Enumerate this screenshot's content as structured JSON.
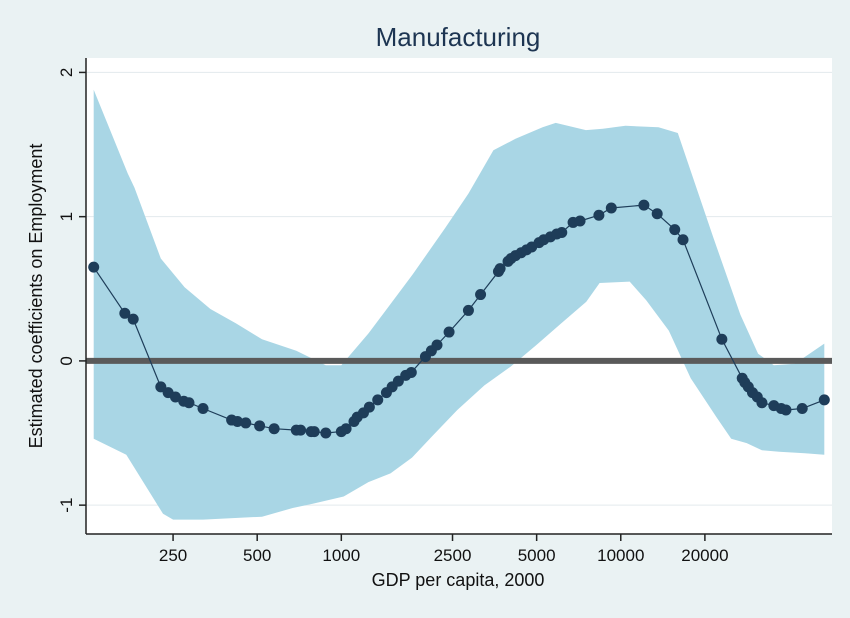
{
  "chart_data": {
    "type": "line",
    "title": "Manufacturing",
    "xlabel": "GDP per capita, 2000",
    "ylabel": "Estimated coefficients on Employment",
    "x_scale": "log",
    "xlim": [
      122,
      57000
    ],
    "ylim": [
      -1.2,
      2.1
    ],
    "x_ticks": [
      250,
      500,
      1000,
      2500,
      5000,
      10000,
      20000
    ],
    "x_tick_labels": [
      "250",
      "500",
      "1000",
      "2500",
      "5000",
      "10000",
      "20000"
    ],
    "y_ticks": [
      -1,
      0,
      1,
      2
    ],
    "y_tick_labels": [
      "-1",
      "0",
      "1",
      "2"
    ],
    "grid": true,
    "reference_line_y": 0,
    "colors": {
      "background": "#eaf2f3",
      "plot_background": "#ffffff",
      "band": "#a9d6e5",
      "line": "#1e3d59",
      "marker": "#1e3d59",
      "zero_line": "#5a5a5a",
      "grid": "#e3eaed"
    },
    "series": [
      {
        "values": [
          {
            "x": 130,
            "y": 0.65
          },
          {
            "x": 168,
            "y": 0.33
          },
          {
            "x": 180,
            "y": 0.29
          },
          {
            "x": 226,
            "y": -0.18
          },
          {
            "x": 240,
            "y": -0.22
          },
          {
            "x": 255,
            "y": -0.25
          },
          {
            "x": 273,
            "y": -0.28
          },
          {
            "x": 285,
            "y": -0.29
          },
          {
            "x": 320,
            "y": -0.33
          },
          {
            "x": 405,
            "y": -0.41
          },
          {
            "x": 425,
            "y": -0.42
          },
          {
            "x": 455,
            "y": -0.43
          },
          {
            "x": 510,
            "y": -0.45
          },
          {
            "x": 575,
            "y": -0.47
          },
          {
            "x": 690,
            "y": -0.48
          },
          {
            "x": 715,
            "y": -0.48
          },
          {
            "x": 780,
            "y": -0.49
          },
          {
            "x": 800,
            "y": -0.49
          },
          {
            "x": 880,
            "y": -0.5
          },
          {
            "x": 1000,
            "y": -0.49
          },
          {
            "x": 1040,
            "y": -0.47
          },
          {
            "x": 1110,
            "y": -0.42
          },
          {
            "x": 1140,
            "y": -0.39
          },
          {
            "x": 1200,
            "y": -0.36
          },
          {
            "x": 1260,
            "y": -0.32
          },
          {
            "x": 1350,
            "y": -0.27
          },
          {
            "x": 1450,
            "y": -0.22
          },
          {
            "x": 1520,
            "y": -0.18
          },
          {
            "x": 1600,
            "y": -0.14
          },
          {
            "x": 1700,
            "y": -0.1
          },
          {
            "x": 1780,
            "y": -0.08
          },
          {
            "x": 2000,
            "y": 0.03
          },
          {
            "x": 2100,
            "y": 0.07
          },
          {
            "x": 2200,
            "y": 0.11
          },
          {
            "x": 2430,
            "y": 0.2
          },
          {
            "x": 2850,
            "y": 0.35
          },
          {
            "x": 3150,
            "y": 0.46
          },
          {
            "x": 3650,
            "y": 0.62
          },
          {
            "x": 3700,
            "y": 0.64
          },
          {
            "x": 3950,
            "y": 0.69
          },
          {
            "x": 4050,
            "y": 0.71
          },
          {
            "x": 4200,
            "y": 0.73
          },
          {
            "x": 4400,
            "y": 0.75
          },
          {
            "x": 4600,
            "y": 0.77
          },
          {
            "x": 4800,
            "y": 0.79
          },
          {
            "x": 5100,
            "y": 0.82
          },
          {
            "x": 5300,
            "y": 0.84
          },
          {
            "x": 5600,
            "y": 0.86
          },
          {
            "x": 5900,
            "y": 0.88
          },
          {
            "x": 6150,
            "y": 0.89
          },
          {
            "x": 6750,
            "y": 0.96
          },
          {
            "x": 7150,
            "y": 0.97
          },
          {
            "x": 8350,
            "y": 1.01
          },
          {
            "x": 9250,
            "y": 1.06
          },
          {
            "x": 12100,
            "y": 1.08
          },
          {
            "x": 13500,
            "y": 1.02
          },
          {
            "x": 15600,
            "y": 0.91
          },
          {
            "x": 16700,
            "y": 0.84
          },
          {
            "x": 23000,
            "y": 0.15
          },
          {
            "x": 27200,
            "y": -0.12
          },
          {
            "x": 27800,
            "y": -0.15
          },
          {
            "x": 28600,
            "y": -0.18
          },
          {
            "x": 29600,
            "y": -0.22
          },
          {
            "x": 30800,
            "y": -0.25
          },
          {
            "x": 32000,
            "y": -0.29
          },
          {
            "x": 35300,
            "y": -0.31
          },
          {
            "x": 37500,
            "y": -0.33
          },
          {
            "x": 39000,
            "y": -0.34
          },
          {
            "x": 44600,
            "y": -0.33
          },
          {
            "x": 53500,
            "y": -0.27
          }
        ]
      }
    ],
    "band": {
      "lower": [
        {
          "x": 130,
          "y": -0.54
        },
        {
          "x": 170,
          "y": -0.65
        },
        {
          "x": 230,
          "y": -1.06
        },
        {
          "x": 250,
          "y": -1.1
        },
        {
          "x": 320,
          "y": -1.1
        },
        {
          "x": 520,
          "y": -1.08
        },
        {
          "x": 670,
          "y": -1.02
        },
        {
          "x": 790,
          "y": -0.99
        },
        {
          "x": 1020,
          "y": -0.94
        },
        {
          "x": 1250,
          "y": -0.84
        },
        {
          "x": 1500,
          "y": -0.78
        },
        {
          "x": 1790,
          "y": -0.67
        },
        {
          "x": 2120,
          "y": -0.52
        },
        {
          "x": 2600,
          "y": -0.34
        },
        {
          "x": 3250,
          "y": -0.17
        },
        {
          "x": 4030,
          "y": -0.04
        },
        {
          "x": 4990,
          "y": 0.11
        },
        {
          "x": 6120,
          "y": 0.26
        },
        {
          "x": 7530,
          "y": 0.41
        },
        {
          "x": 8400,
          "y": 0.54
        },
        {
          "x": 10760,
          "y": 0.55
        },
        {
          "x": 12330,
          "y": 0.42
        },
        {
          "x": 14850,
          "y": 0.21
        },
        {
          "x": 17800,
          "y": -0.12
        },
        {
          "x": 22000,
          "y": -0.39
        },
        {
          "x": 24850,
          "y": -0.54
        },
        {
          "x": 28230,
          "y": -0.57
        },
        {
          "x": 31980,
          "y": -0.62
        },
        {
          "x": 36890,
          "y": -0.63
        },
        {
          "x": 45580,
          "y": -0.64
        },
        {
          "x": 53500,
          "y": -0.65
        }
      ],
      "upper": [
        {
          "x": 130,
          "y": 1.88
        },
        {
          "x": 172,
          "y": 1.3
        },
        {
          "x": 182,
          "y": 1.2
        },
        {
          "x": 226,
          "y": 0.71
        },
        {
          "x": 275,
          "y": 0.51
        },
        {
          "x": 340,
          "y": 0.36
        },
        {
          "x": 420,
          "y": 0.26
        },
        {
          "x": 520,
          "y": 0.15
        },
        {
          "x": 690,
          "y": 0.07
        },
        {
          "x": 880,
          "y": -0.03
        },
        {
          "x": 1000,
          "y": -0.03
        },
        {
          "x": 1250,
          "y": 0.19
        },
        {
          "x": 1800,
          "y": 0.6
        },
        {
          "x": 2350,
          "y": 0.92
        },
        {
          "x": 2850,
          "y": 1.16
        },
        {
          "x": 3500,
          "y": 1.46
        },
        {
          "x": 4200,
          "y": 1.54
        },
        {
          "x": 5250,
          "y": 1.62
        },
        {
          "x": 5850,
          "y": 1.65
        },
        {
          "x": 7500,
          "y": 1.6
        },
        {
          "x": 8630,
          "y": 1.61
        },
        {
          "x": 10400,
          "y": 1.63
        },
        {
          "x": 13650,
          "y": 1.62
        },
        {
          "x": 16000,
          "y": 1.58
        },
        {
          "x": 21400,
          "y": 0.86
        },
        {
          "x": 26800,
          "y": 0.32
        },
        {
          "x": 31000,
          "y": 0.05
        },
        {
          "x": 35300,
          "y": -0.03
        },
        {
          "x": 42000,
          "y": -0.02
        },
        {
          "x": 53500,
          "y": 0.12
        }
      ]
    }
  }
}
